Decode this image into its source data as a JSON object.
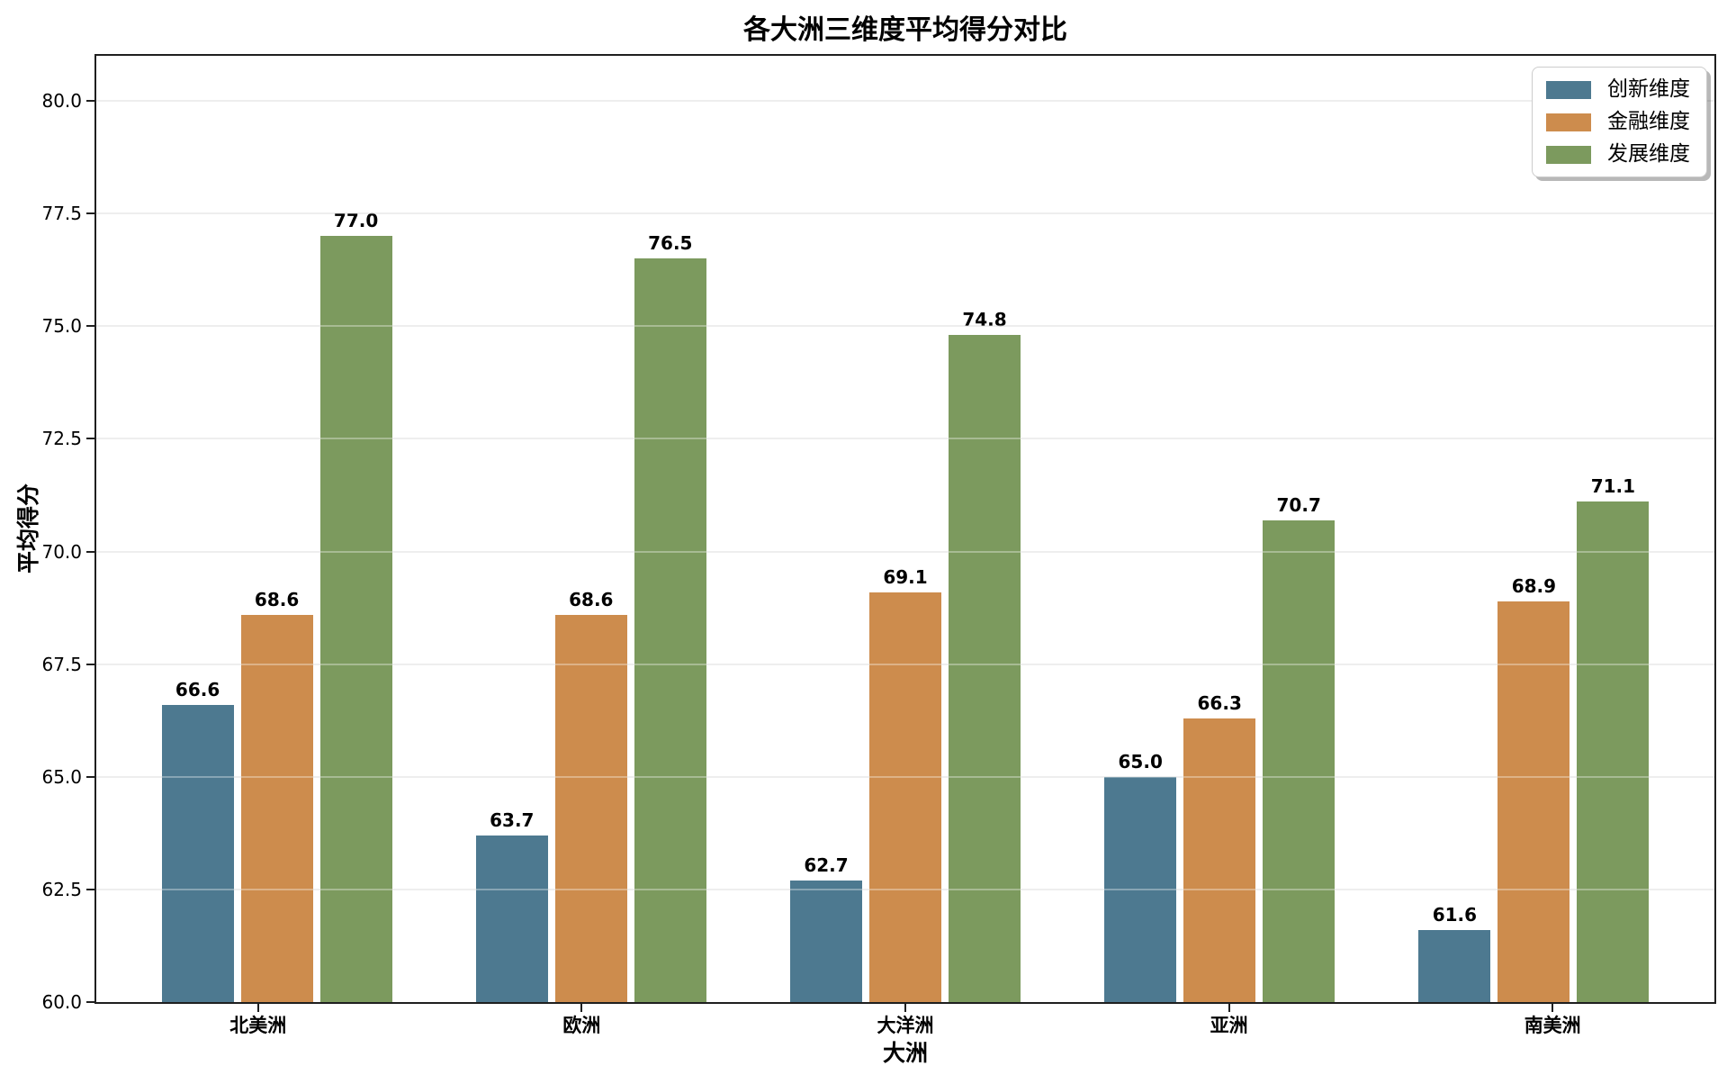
{
  "chart_data": {
    "type": "bar",
    "title": "各大洲三维度平均得分对比",
    "xlabel": "大洲",
    "ylabel": "平均得分",
    "categories": [
      "北美洲",
      "欧洲",
      "大洋洲",
      "亚洲",
      "南美洲"
    ],
    "series": [
      {
        "name": "创新维度",
        "color": "#4d7990",
        "values": [
          66.6,
          63.7,
          62.7,
          65.0,
          61.6
        ]
      },
      {
        "name": "金融维度",
        "color": "#cd8c4d",
        "values": [
          68.6,
          68.6,
          69.1,
          66.3,
          68.9
        ]
      },
      {
        "name": "发展维度",
        "color": "#7c9a5e",
        "values": [
          77.0,
          76.5,
          74.8,
          70.7,
          71.1
        ]
      }
    ],
    "ylim": [
      60,
      81
    ],
    "yticks": [
      60.0,
      62.5,
      65.0,
      67.5,
      70.0,
      72.5,
      75.0,
      77.5,
      80.0
    ],
    "grid": true,
    "legend_position": "upper right",
    "value_label_decimals": 1,
    "tick_decimals": 1
  },
  "colors": {
    "spine": "#1f1f1f",
    "grid": "#e6e6e6",
    "background": "#ffffff",
    "text": "#000000"
  }
}
